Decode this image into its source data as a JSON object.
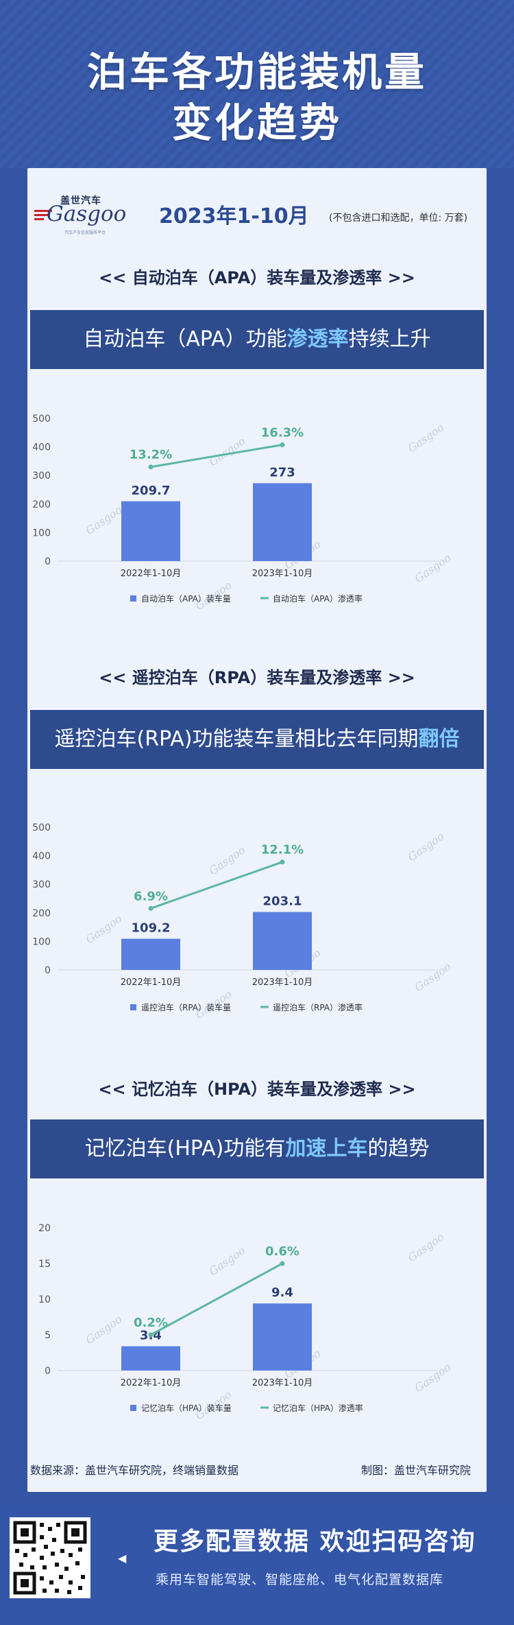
{
  "header": {
    "title_line1": "泊车各功能装机量",
    "title_line2": "变化趋势"
  },
  "logo": {
    "cn": "盖世汽车",
    "en": "Gasgoo",
    "tagline": "汽车产业信息服务平台"
  },
  "period": "2023年1-10月",
  "unit_note": "(不包含进口和选配，单位: 万套)",
  "sections": [
    {
      "heading": "<< 自动泊车（APA）装车量及渗透率 >>",
      "banner_pre": "自动泊车（APA）功能",
      "banner_hl": "渗透率",
      "banner_post": "持续上升"
    },
    {
      "heading": "<< 遥控泊车（RPA）装车量及渗透率 >>",
      "banner_pre": "遥控泊车(RPA)功能装车量相比去年同期",
      "banner_hl": "翻倍",
      "banner_post": ""
    },
    {
      "heading": "<< 记忆泊车（HPA）装车量及渗透率 >>",
      "banner_pre": "记忆泊车(HPA)功能有",
      "banner_hl": "加速上车",
      "banner_post": "的趋势"
    }
  ],
  "chart_data": [
    {
      "type": "bar",
      "categories": [
        "2022年1-10月",
        "2023年1-10月"
      ],
      "series": [
        {
          "name": "自动泊车（APA）装车量",
          "kind": "bar",
          "values": [
            209.7,
            273
          ],
          "labels": [
            "209.7",
            "273"
          ]
        },
        {
          "name": "自动泊车（APA）渗透率",
          "kind": "line",
          "values": [
            13.2,
            16.3
          ],
          "labels": [
            "13.2%",
            "16.3%"
          ]
        }
      ],
      "yticks": [
        "0",
        "100",
        "200",
        "300",
        "400",
        "500"
      ],
      "ylim": [
        0,
        500
      ],
      "line_ylim": [
        0,
        20
      ]
    },
    {
      "type": "bar",
      "categories": [
        "2022年1-10月",
        "2023年1-10月"
      ],
      "series": [
        {
          "name": "遥控泊车（RPA）装车量",
          "kind": "bar",
          "values": [
            109.2,
            203.1
          ],
          "labels": [
            "109.2",
            "203.1"
          ]
        },
        {
          "name": "遥控泊车（RPA）渗透率",
          "kind": "line",
          "values": [
            6.9,
            12.1
          ],
          "labels": [
            "6.9%",
            "12.1%"
          ]
        }
      ],
      "yticks": [
        "0",
        "100",
        "200",
        "300",
        "400",
        "500"
      ],
      "ylim": [
        0,
        500
      ],
      "line_ylim": [
        0,
        16
      ]
    },
    {
      "type": "bar",
      "categories": [
        "2022年1-10月",
        "2023年1-10月"
      ],
      "series": [
        {
          "name": "记忆泊车（HPA）装车量",
          "kind": "bar",
          "values": [
            3.4,
            9.4
          ],
          "labels": [
            "3.4",
            "9.4"
          ]
        },
        {
          "name": "记忆泊车（HPA）渗透率",
          "kind": "line",
          "values": [
            0.2,
            0.6
          ],
          "labels": [
            "0.2%",
            "0.6%"
          ]
        }
      ],
      "yticks": [
        "0",
        "5",
        "10",
        "15",
        "20"
      ],
      "ylim": [
        0,
        20
      ],
      "line_ylim": [
        0,
        0.8
      ]
    }
  ],
  "colors": {
    "bar": "#5b7fe0",
    "line": "#5bb8a0",
    "line_label": "#4fae92",
    "axis_text": "#555555"
  },
  "footer": {
    "source": "数据来源：盖世汽车研究院，终端销量数据",
    "credit": "制图：盖世汽车研究院",
    "cta": "更多配置数据 欢迎扫码咨询",
    "cta_sub": "乘用车智能驾驶、智能座舱、电气化配置数据库",
    "arrow_icon": "triangle-left-icon",
    "qr_icon": "qr-code-icon"
  }
}
